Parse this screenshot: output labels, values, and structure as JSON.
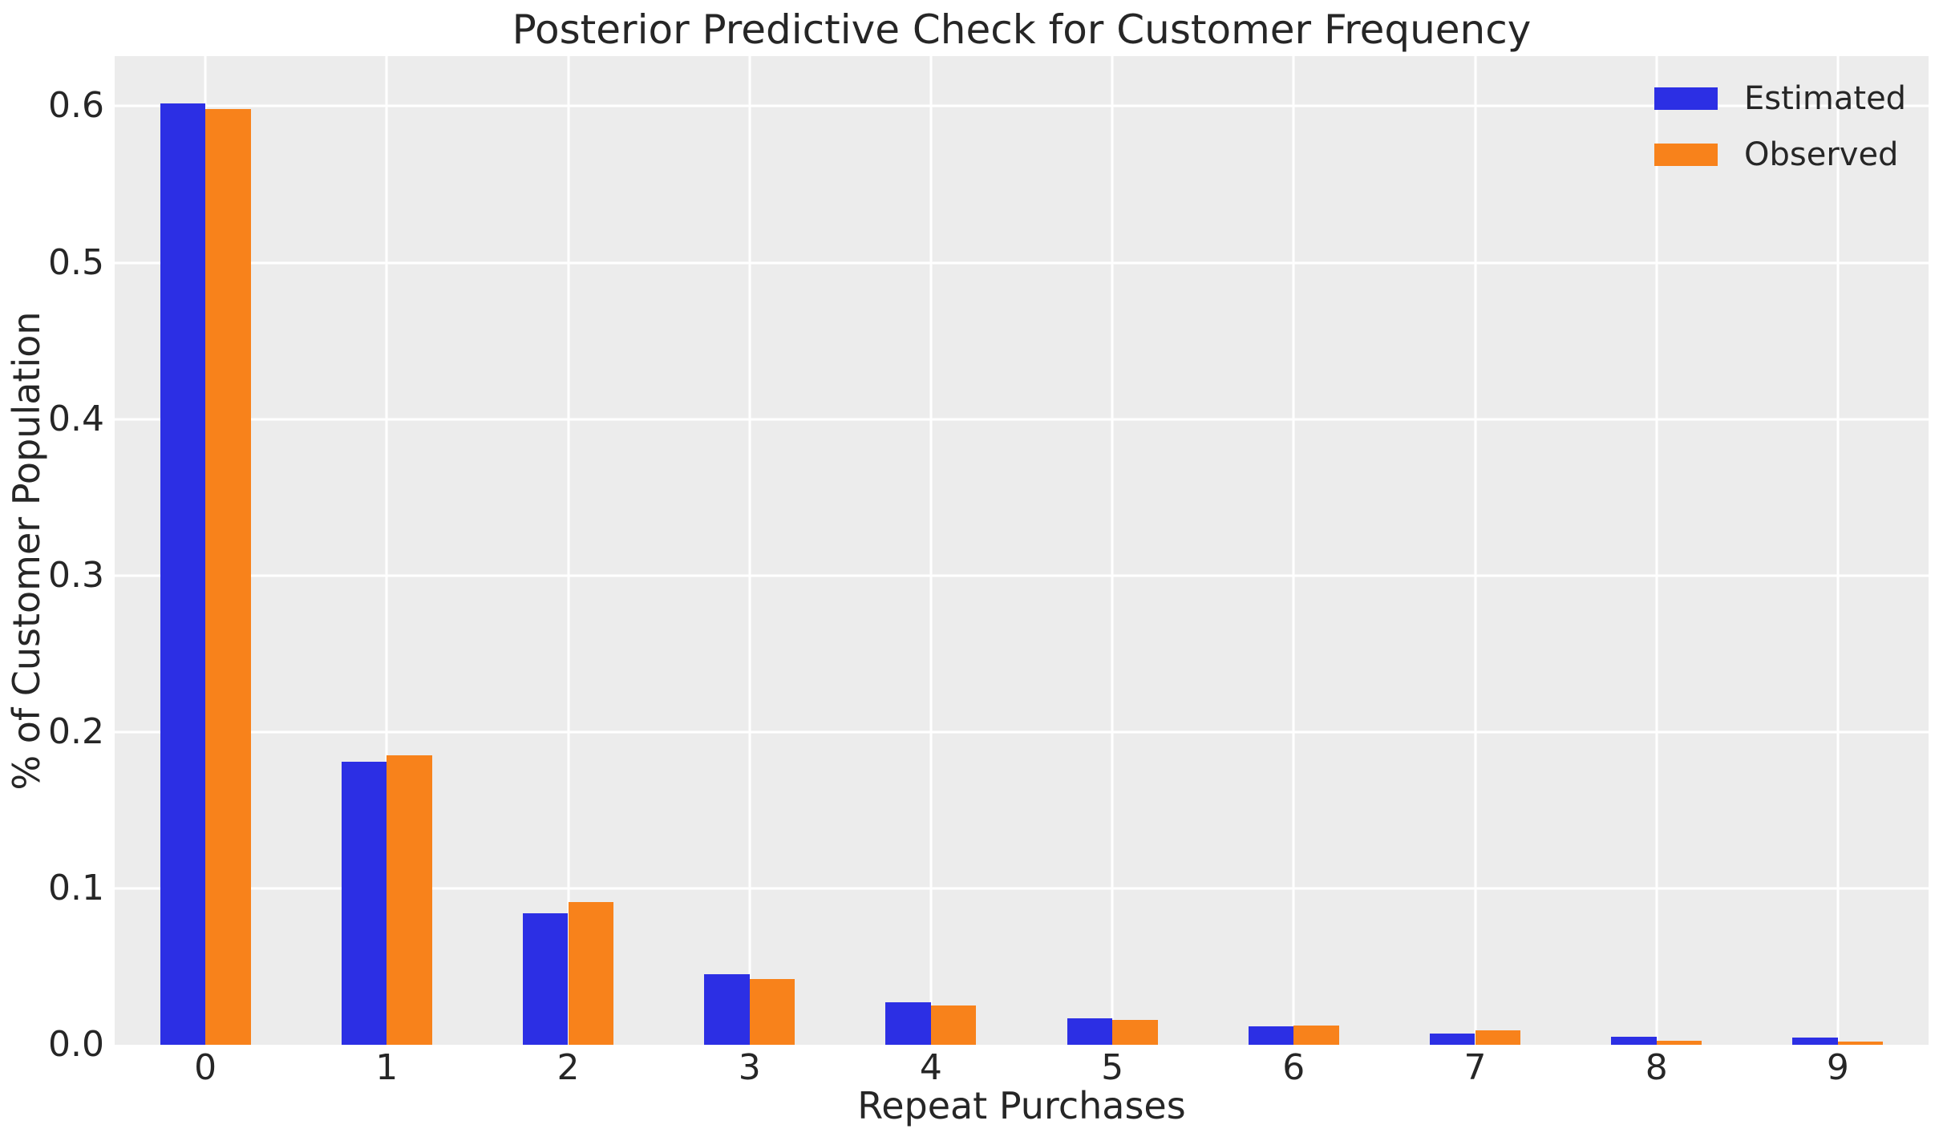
{
  "chart_data": {
    "type": "bar",
    "title": "Posterior Predictive Check for Customer Frequency",
    "xlabel": "Repeat Purchases",
    "ylabel": "% of Customer Population",
    "categories": [
      "0",
      "1",
      "2",
      "3",
      "4",
      "5",
      "6",
      "7",
      "8",
      "9"
    ],
    "series": [
      {
        "name": "Estimated",
        "color": "#2c2fe4",
        "values": [
          0.602,
          0.181,
          0.084,
          0.045,
          0.027,
          0.017,
          0.012,
          0.0074,
          0.0051,
          0.0046
        ]
      },
      {
        "name": "Observed",
        "color": "#f8821b",
        "values": [
          0.598,
          0.185,
          0.091,
          0.042,
          0.025,
          0.016,
          0.0125,
          0.0091,
          0.0028,
          0.0023
        ]
      }
    ],
    "yticks": [
      0.0,
      0.1,
      0.2,
      0.3,
      0.4,
      0.5,
      0.6
    ],
    "ytick_labels": [
      "0.0",
      "0.1",
      "0.2",
      "0.3",
      "0.4",
      "0.5",
      "0.6"
    ],
    "ylim": [
      0,
      0.632
    ],
    "grid": "on",
    "legend_position": "upper right",
    "style": {
      "plot_background": "#ececec",
      "grid_color": "#ffffff",
      "text_color": "#262626",
      "figure_background": "#ffffff"
    }
  }
}
